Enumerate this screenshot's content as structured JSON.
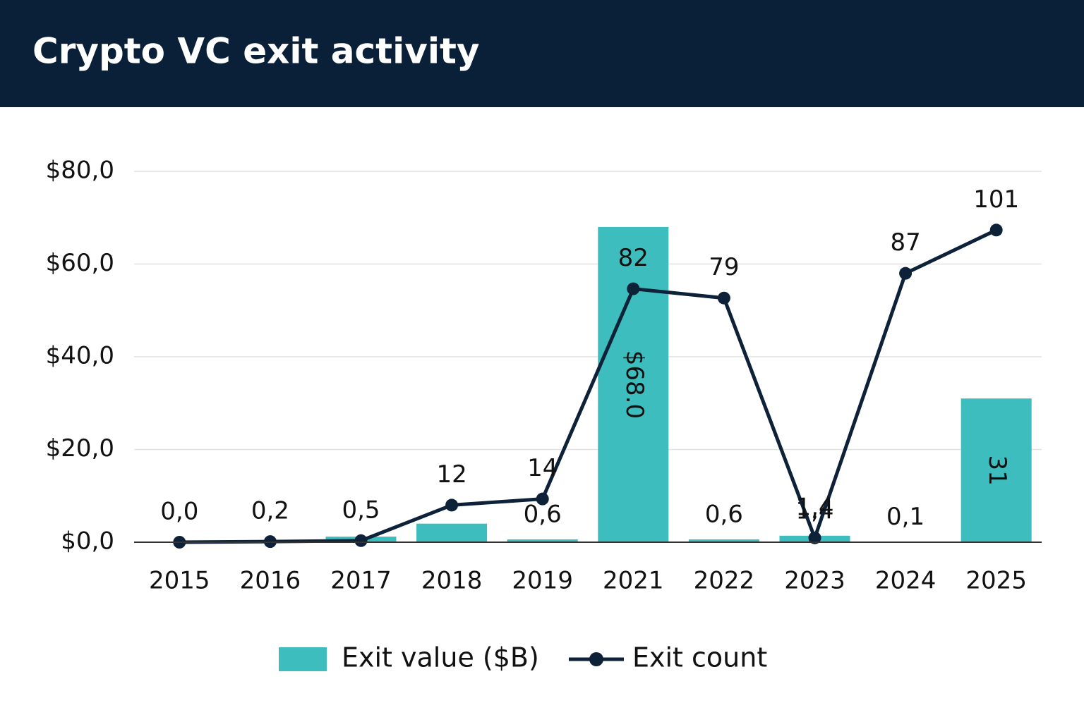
{
  "chart_data": {
    "type": "bar",
    "title": "Crypto VC exit activity",
    "categories": [
      "2015",
      "2016",
      "2017",
      "2018",
      "2019",
      "2021",
      "2022",
      "2023",
      "2024",
      "2025"
    ],
    "series": [
      {
        "name": "Exit value ($B)",
        "type": "bar",
        "color": "#3dbdbd",
        "values": [
          0,
          0,
          1.2,
          4,
          0.6,
          68,
          0.6,
          1.4,
          0.1,
          31
        ],
        "value_labels": [
          null,
          null,
          null,
          null,
          "0,6",
          "$68.0",
          "0,6",
          "1,4",
          "0,1",
          null
        ]
      },
      {
        "name": "Exit count",
        "type": "line",
        "axis": "y2",
        "color": "#0d2238",
        "values": [
          0,
          0.2,
          0.5,
          12,
          14,
          82,
          79,
          1.4,
          87,
          101
        ],
        "value_labels": [
          "0,0",
          "0,2",
          "0,5",
          null,
          null,
          null,
          null,
          "1,4",
          null,
          null
        ]
      }
    ],
    "ylim": [
      0,
      80
    ],
    "yticks": [
      {
        "value": 0,
        "label": "$0,0"
      },
      {
        "value": 20,
        "label": "$20,0"
      },
      {
        "value": 40,
        "label": "$40,0"
      },
      {
        "value": 60,
        "label": "$60,0"
      },
      {
        "value": 80,
        "label": "$80,0"
      }
    ],
    "y2lim": [
      0,
      120
    ],
    "grid": true
  }
}
